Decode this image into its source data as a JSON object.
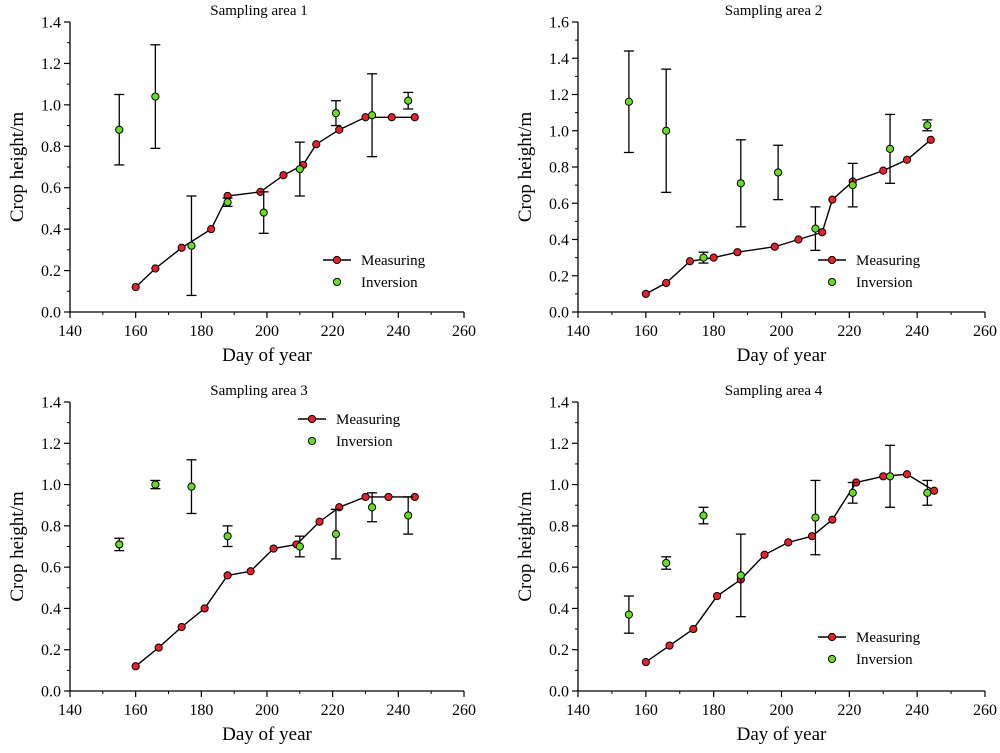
{
  "colors": {
    "measuring_fill": "#e8202a",
    "inversion_fill": "#66dd22",
    "line": "#000000"
  },
  "chart_data": [
    {
      "type": "scatter",
      "title": "Sampling area 1",
      "xlabel": "Day of year",
      "ylabel": "Crop height/m",
      "xlim": [
        140,
        260
      ],
      "ylim": [
        0,
        1.4
      ],
      "xticks": [
        140,
        160,
        180,
        200,
        220,
        240,
        260
      ],
      "yticks": [
        0.0,
        0.2,
        0.4,
        0.6,
        0.8,
        1.0,
        1.2,
        1.4
      ],
      "legend_position": "bottom-right",
      "series": [
        {
          "name": "Measuring",
          "style": "line-markers",
          "x": [
            160,
            166,
            174,
            183,
            188,
            198,
            205,
            211,
            215,
            222,
            230,
            238,
            245
          ],
          "y": [
            0.12,
            0.21,
            0.31,
            0.4,
            0.56,
            0.58,
            0.66,
            0.71,
            0.81,
            0.88,
            0.94,
            0.94,
            0.94
          ]
        },
        {
          "name": "Inversion",
          "style": "markers-errorbars",
          "x": [
            155,
            166,
            177,
            188,
            199,
            210,
            221,
            232,
            243
          ],
          "y": [
            0.88,
            1.04,
            0.32,
            0.53,
            0.48,
            0.69,
            0.96,
            0.95,
            1.02
          ],
          "err": [
            0.17,
            0.25,
            0.24,
            0.02,
            0.1,
            0.13,
            0.06,
            0.2,
            0.04
          ]
        }
      ]
    },
    {
      "type": "scatter",
      "title": "Sampling area 2",
      "xlabel": "Day of year",
      "ylabel": "Crop height/m",
      "xlim": [
        140,
        260
      ],
      "ylim": [
        0,
        1.6
      ],
      "xticks": [
        140,
        160,
        180,
        200,
        220,
        240,
        260
      ],
      "yticks": [
        0.0,
        0.2,
        0.4,
        0.6,
        0.8,
        1.0,
        1.2,
        1.4,
        1.6
      ],
      "legend_position": "bottom-right",
      "series": [
        {
          "name": "Measuring",
          "style": "line-markers",
          "x": [
            160,
            166,
            173,
            180,
            187,
            198,
            205,
            212,
            215,
            221,
            230,
            237,
            244
          ],
          "y": [
            0.1,
            0.16,
            0.28,
            0.3,
            0.33,
            0.36,
            0.4,
            0.44,
            0.62,
            0.72,
            0.78,
            0.84,
            0.95
          ],
          "y_note": ""
        },
        {
          "name": "Inversion",
          "style": "markers-errorbars",
          "x": [
            155,
            166,
            177,
            188,
            199,
            210,
            221,
            232,
            243
          ],
          "y": [
            1.16,
            1.0,
            0.3,
            0.71,
            0.77,
            0.46,
            0.7,
            0.9,
            1.03
          ],
          "err": [
            0.28,
            0.34,
            0.03,
            0.24,
            0.15,
            0.12,
            0.12,
            0.19,
            0.03
          ]
        }
      ]
    },
    {
      "type": "scatter",
      "title": "Sampling area 3",
      "xlabel": "Day of year",
      "ylabel": "Crop height/m",
      "xlim": [
        140,
        260
      ],
      "ylim": [
        0,
        1.4
      ],
      "xticks": [
        140,
        160,
        180,
        200,
        220,
        240,
        260
      ],
      "yticks": [
        0.0,
        0.2,
        0.4,
        0.6,
        0.8,
        1.0,
        1.2,
        1.4
      ],
      "legend_position": "top-right",
      "series": [
        {
          "name": "Measuring",
          "style": "line-markers",
          "x": [
            160,
            167,
            174,
            181,
            188,
            195,
            202,
            209,
            216,
            222,
            230,
            237,
            245
          ],
          "y": [
            0.12,
            0.21,
            0.31,
            0.4,
            0.56,
            0.58,
            0.69,
            0.71,
            0.82,
            0.89,
            0.94,
            0.94,
            0.94
          ]
        },
        {
          "name": "Inversion",
          "style": "markers-errorbars",
          "x": [
            155,
            166,
            177,
            188,
            210,
            221,
            232,
            243
          ],
          "y": [
            0.71,
            1.0,
            0.99,
            0.75,
            0.7,
            0.76,
            0.89,
            0.85
          ],
          "err": [
            0.03,
            0.02,
            0.13,
            0.05,
            0.05,
            0.12,
            0.07,
            0.09
          ]
        }
      ]
    },
    {
      "type": "scatter",
      "title": "Sampling area 4",
      "xlabel": "Day of year",
      "ylabel": "Crop height/m",
      "xlim": [
        140,
        260
      ],
      "ylim": [
        0,
        1.4
      ],
      "xticks": [
        140,
        160,
        180,
        200,
        220,
        240,
        260
      ],
      "yticks": [
        0.0,
        0.2,
        0.4,
        0.6,
        0.8,
        1.0,
        1.2,
        1.4
      ],
      "legend_position": "bottom-right",
      "series": [
        {
          "name": "Measuring",
          "style": "line-markers",
          "x": [
            160,
            167,
            174,
            181,
            188,
            195,
            202,
            209,
            215,
            222,
            230,
            237,
            245
          ],
          "y": [
            0.14,
            0.22,
            0.3,
            0.46,
            0.54,
            0.66,
            0.72,
            0.75,
            0.83,
            1.01,
            1.04,
            1.05,
            0.97
          ]
        },
        {
          "name": "Inversion",
          "style": "markers-errorbars",
          "x": [
            155,
            166,
            177,
            188,
            210,
            221,
            232,
            243
          ],
          "y": [
            0.37,
            0.62,
            0.85,
            0.56,
            0.84,
            0.96,
            1.04,
            0.96
          ],
          "err": [
            0.09,
            0.03,
            0.04,
            0.2,
            0.18,
            0.05,
            0.15,
            0.06
          ]
        }
      ]
    }
  ]
}
